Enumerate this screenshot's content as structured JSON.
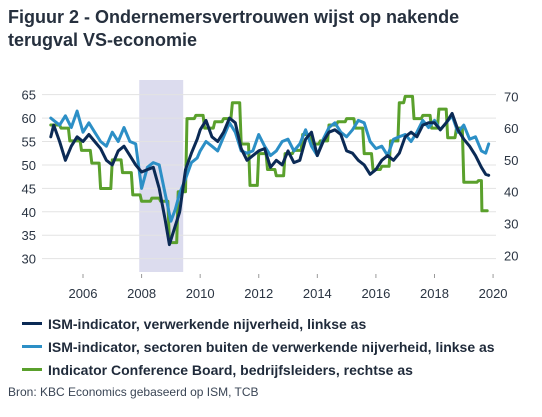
{
  "title": {
    "line1": "Figuur 2 - Ondernemersvertrouwen wijst op nakende",
    "line2": "terugval VS-economie"
  },
  "source": "Bron: KBC Economics gebaseerd op ISM, TCB",
  "chart_data": {
    "type": "line",
    "title": "Figuur 2 - Ondernemersvertrouwen wijst op nakende terugval VS-economie",
    "xlim": [
      2004.6,
      2020.1
    ],
    "x_ticks": [
      "2006",
      "2008",
      "2010",
      "2012",
      "2014",
      "2016",
      "2018",
      "2020"
    ],
    "y_left": {
      "ylim": [
        28,
        66
      ],
      "ticks": [
        "30",
        "35",
        "40",
        "45",
        "50",
        "55",
        "60",
        "65"
      ]
    },
    "y_right": {
      "ylim": [
        16,
        72
      ],
      "ticks": [
        "20",
        "30",
        "40",
        "50",
        "60",
        "70"
      ]
    },
    "recession_band": [
      2007.92,
      2009.42
    ],
    "grid": true,
    "legend_position": "bottom",
    "series": [
      {
        "name": "ISM-indicator, verwerkende nijverheid, linkse as",
        "axis": "left",
        "color": "#0b2a55",
        "points": [
          [
            2004.9,
            56
          ],
          [
            2005.0,
            58.5
          ],
          [
            2005.2,
            55
          ],
          [
            2005.4,
            51
          ],
          [
            2005.6,
            54
          ],
          [
            2005.8,
            56
          ],
          [
            2006.0,
            55
          ],
          [
            2006.2,
            56.5
          ],
          [
            2006.4,
            55
          ],
          [
            2006.6,
            53.5
          ],
          [
            2006.8,
            51
          ],
          [
            2007.0,
            50
          ],
          [
            2007.2,
            53
          ],
          [
            2007.4,
            54
          ],
          [
            2007.6,
            52
          ],
          [
            2007.8,
            50
          ],
          [
            2008.0,
            48.5
          ],
          [
            2008.2,
            49
          ],
          [
            2008.4,
            49.5
          ],
          [
            2008.6,
            45
          ],
          [
            2008.8,
            38.5
          ],
          [
            2008.95,
            33
          ],
          [
            2009.1,
            36
          ],
          [
            2009.3,
            40
          ],
          [
            2009.5,
            49
          ],
          [
            2009.7,
            52.5
          ],
          [
            2009.9,
            55.5
          ],
          [
            2010.0,
            57.5
          ],
          [
            2010.2,
            59.5
          ],
          [
            2010.4,
            56
          ],
          [
            2010.6,
            55
          ],
          [
            2010.8,
            57
          ],
          [
            2011.0,
            60
          ],
          [
            2011.2,
            59
          ],
          [
            2011.4,
            53.5
          ],
          [
            2011.6,
            51
          ],
          [
            2011.8,
            52
          ],
          [
            2012.0,
            53
          ],
          [
            2012.2,
            53.5
          ],
          [
            2012.4,
            49.5
          ],
          [
            2012.6,
            51
          ],
          [
            2012.8,
            50
          ],
          [
            2013.0,
            53
          ],
          [
            2013.2,
            50.5
          ],
          [
            2013.4,
            51
          ],
          [
            2013.6,
            55.5
          ],
          [
            2013.8,
            57
          ],
          [
            2014.0,
            52
          ],
          [
            2014.2,
            55
          ],
          [
            2014.4,
            57
          ],
          [
            2014.6,
            57.5
          ],
          [
            2014.8,
            56.5
          ],
          [
            2015.0,
            53
          ],
          [
            2015.2,
            52.5
          ],
          [
            2015.4,
            51
          ],
          [
            2015.6,
            50
          ],
          [
            2015.8,
            48
          ],
          [
            2016.0,
            49
          ],
          [
            2016.2,
            51
          ],
          [
            2016.4,
            52
          ],
          [
            2016.6,
            51
          ],
          [
            2016.8,
            52.5
          ],
          [
            2017.0,
            56
          ],
          [
            2017.2,
            57
          ],
          [
            2017.4,
            56
          ],
          [
            2017.6,
            58.5
          ],
          [
            2017.8,
            59
          ],
          [
            2018.0,
            59
          ],
          [
            2018.2,
            57.5
          ],
          [
            2018.4,
            59
          ],
          [
            2018.6,
            61
          ],
          [
            2018.8,
            57.5
          ],
          [
            2019.0,
            55.5
          ],
          [
            2019.2,
            54
          ],
          [
            2019.4,
            52
          ],
          [
            2019.6,
            49.5
          ],
          [
            2019.75,
            48
          ],
          [
            2019.85,
            47.8
          ]
        ]
      },
      {
        "name": "ISM-indicator, sectoren buiten de verwerkende nijverheid, linkse as",
        "axis": "left",
        "color": "#2c8fc6",
        "points": [
          [
            2004.9,
            60
          ],
          [
            2005.0,
            59.5
          ],
          [
            2005.2,
            58.5
          ],
          [
            2005.4,
            60.5
          ],
          [
            2005.6,
            58
          ],
          [
            2005.8,
            61.5
          ],
          [
            2006.0,
            57
          ],
          [
            2006.2,
            59
          ],
          [
            2006.4,
            57
          ],
          [
            2006.6,
            55
          ],
          [
            2006.8,
            54
          ],
          [
            2007.0,
            57
          ],
          [
            2007.2,
            55
          ],
          [
            2007.4,
            58
          ],
          [
            2007.6,
            55
          ],
          [
            2007.8,
            54.5
          ],
          [
            2008.0,
            45
          ],
          [
            2008.2,
            49.5
          ],
          [
            2008.4,
            50.5
          ],
          [
            2008.6,
            50
          ],
          [
            2008.8,
            44
          ],
          [
            2009.0,
            38
          ],
          [
            2009.15,
            40.5
          ],
          [
            2009.3,
            44
          ],
          [
            2009.5,
            47
          ],
          [
            2009.7,
            50.5
          ],
          [
            2009.9,
            51.5
          ],
          [
            2010.0,
            53
          ],
          [
            2010.2,
            55
          ],
          [
            2010.4,
            54
          ],
          [
            2010.6,
            53
          ],
          [
            2010.8,
            56
          ],
          [
            2011.0,
            59
          ],
          [
            2011.2,
            57
          ],
          [
            2011.4,
            53
          ],
          [
            2011.6,
            52.5
          ],
          [
            2011.8,
            53
          ],
          [
            2012.0,
            56.5
          ],
          [
            2012.2,
            54
          ],
          [
            2012.4,
            52
          ],
          [
            2012.6,
            53
          ],
          [
            2012.8,
            55
          ],
          [
            2013.0,
            55.5
          ],
          [
            2013.2,
            53
          ],
          [
            2013.4,
            54.5
          ],
          [
            2013.6,
            57.5
          ],
          [
            2013.8,
            54
          ],
          [
            2014.0,
            52
          ],
          [
            2014.2,
            55.5
          ],
          [
            2014.4,
            58
          ],
          [
            2014.6,
            59
          ],
          [
            2014.8,
            57
          ],
          [
            2015.0,
            56
          ],
          [
            2015.2,
            57.5
          ],
          [
            2015.4,
            59.5
          ],
          [
            2015.6,
            59
          ],
          [
            2015.8,
            55
          ],
          [
            2016.0,
            53.5
          ],
          [
            2016.2,
            54
          ],
          [
            2016.4,
            52
          ],
          [
            2016.6,
            55.5
          ],
          [
            2016.8,
            56
          ],
          [
            2017.0,
            56.5
          ],
          [
            2017.2,
            55
          ],
          [
            2017.4,
            57
          ],
          [
            2017.6,
            59.5
          ],
          [
            2017.8,
            58
          ],
          [
            2018.0,
            59.5
          ],
          [
            2018.2,
            57.5
          ],
          [
            2018.4,
            59
          ],
          [
            2018.6,
            60.5
          ],
          [
            2018.8,
            57
          ],
          [
            2019.0,
            58.5
          ],
          [
            2019.2,
            55.5
          ],
          [
            2019.4,
            56
          ],
          [
            2019.6,
            53
          ],
          [
            2019.75,
            52.5
          ],
          [
            2019.85,
            54.5
          ]
        ]
      },
      {
        "name": "Indicator Conference Board, bedrijfsleiders, rechtse as",
        "axis": "right",
        "color": "#5aa02c",
        "points": [
          [
            2004.9,
            61
          ],
          [
            2005.2,
            61
          ],
          [
            2005.25,
            60
          ],
          [
            2005.5,
            60
          ],
          [
            2005.55,
            56
          ],
          [
            2005.9,
            56
          ],
          [
            2005.95,
            53
          ],
          [
            2006.25,
            53
          ],
          [
            2006.3,
            49
          ],
          [
            2006.55,
            49
          ],
          [
            2006.6,
            41
          ],
          [
            2006.95,
            41
          ],
          [
            2007.0,
            50
          ],
          [
            2007.3,
            50
          ],
          [
            2007.35,
            46
          ],
          [
            2007.65,
            46
          ],
          [
            2007.7,
            39
          ],
          [
            2007.95,
            39
          ],
          [
            2008.0,
            37
          ],
          [
            2008.3,
            37
          ],
          [
            2008.35,
            38
          ],
          [
            2008.6,
            38
          ],
          [
            2008.65,
            37
          ],
          [
            2008.9,
            37
          ],
          [
            2008.95,
            24
          ],
          [
            2009.2,
            24
          ],
          [
            2009.25,
            40
          ],
          [
            2009.5,
            40
          ],
          [
            2009.55,
            63
          ],
          [
            2009.8,
            63
          ],
          [
            2009.85,
            64
          ],
          [
            2010.1,
            64
          ],
          [
            2010.15,
            60
          ],
          [
            2010.45,
            60
          ],
          [
            2010.5,
            62
          ],
          [
            2010.75,
            62
          ],
          [
            2010.8,
            63
          ],
          [
            2011.05,
            63
          ],
          [
            2011.1,
            68
          ],
          [
            2011.35,
            68
          ],
          [
            2011.4,
            55
          ],
          [
            2011.65,
            55
          ],
          [
            2011.7,
            42
          ],
          [
            2011.95,
            42
          ],
          [
            2012.0,
            52
          ],
          [
            2012.25,
            52
          ],
          [
            2012.3,
            47
          ],
          [
            2012.55,
            47
          ],
          [
            2012.6,
            45
          ],
          [
            2012.85,
            45
          ],
          [
            2012.9,
            52
          ],
          [
            2013.15,
            52
          ],
          [
            2013.2,
            53
          ],
          [
            2013.45,
            53
          ],
          [
            2013.5,
            58
          ],
          [
            2013.75,
            58
          ],
          [
            2013.8,
            55
          ],
          [
            2014.05,
            55
          ],
          [
            2014.1,
            56
          ],
          [
            2014.35,
            56
          ],
          [
            2014.4,
            61
          ],
          [
            2014.65,
            61
          ],
          [
            2014.7,
            62
          ],
          [
            2014.95,
            62
          ],
          [
            2015.0,
            63
          ],
          [
            2015.25,
            63
          ],
          [
            2015.3,
            60
          ],
          [
            2015.55,
            60
          ],
          [
            2015.6,
            52
          ],
          [
            2015.85,
            52
          ],
          [
            2015.9,
            47
          ],
          [
            2016.15,
            47
          ],
          [
            2016.2,
            48
          ],
          [
            2016.45,
            48
          ],
          [
            2016.5,
            56
          ],
          [
            2016.75,
            56
          ],
          [
            2016.8,
            68
          ],
          [
            2016.95,
            68
          ],
          [
            2017.0,
            70
          ],
          [
            2017.25,
            70
          ],
          [
            2017.3,
            63
          ],
          [
            2017.55,
            63
          ],
          [
            2017.6,
            64
          ],
          [
            2017.85,
            64
          ],
          [
            2017.9,
            60
          ],
          [
            2018.1,
            60
          ],
          [
            2018.15,
            66
          ],
          [
            2018.4,
            66
          ],
          [
            2018.45,
            57
          ],
          [
            2018.7,
            57
          ],
          [
            2018.75,
            60
          ],
          [
            2018.95,
            60
          ],
          [
            2019.0,
            43
          ],
          [
            2019.45,
            43
          ],
          [
            2019.5,
            43.5
          ],
          [
            2019.6,
            43.5
          ],
          [
            2019.62,
            34
          ],
          [
            2019.8,
            34
          ]
        ]
      }
    ]
  }
}
